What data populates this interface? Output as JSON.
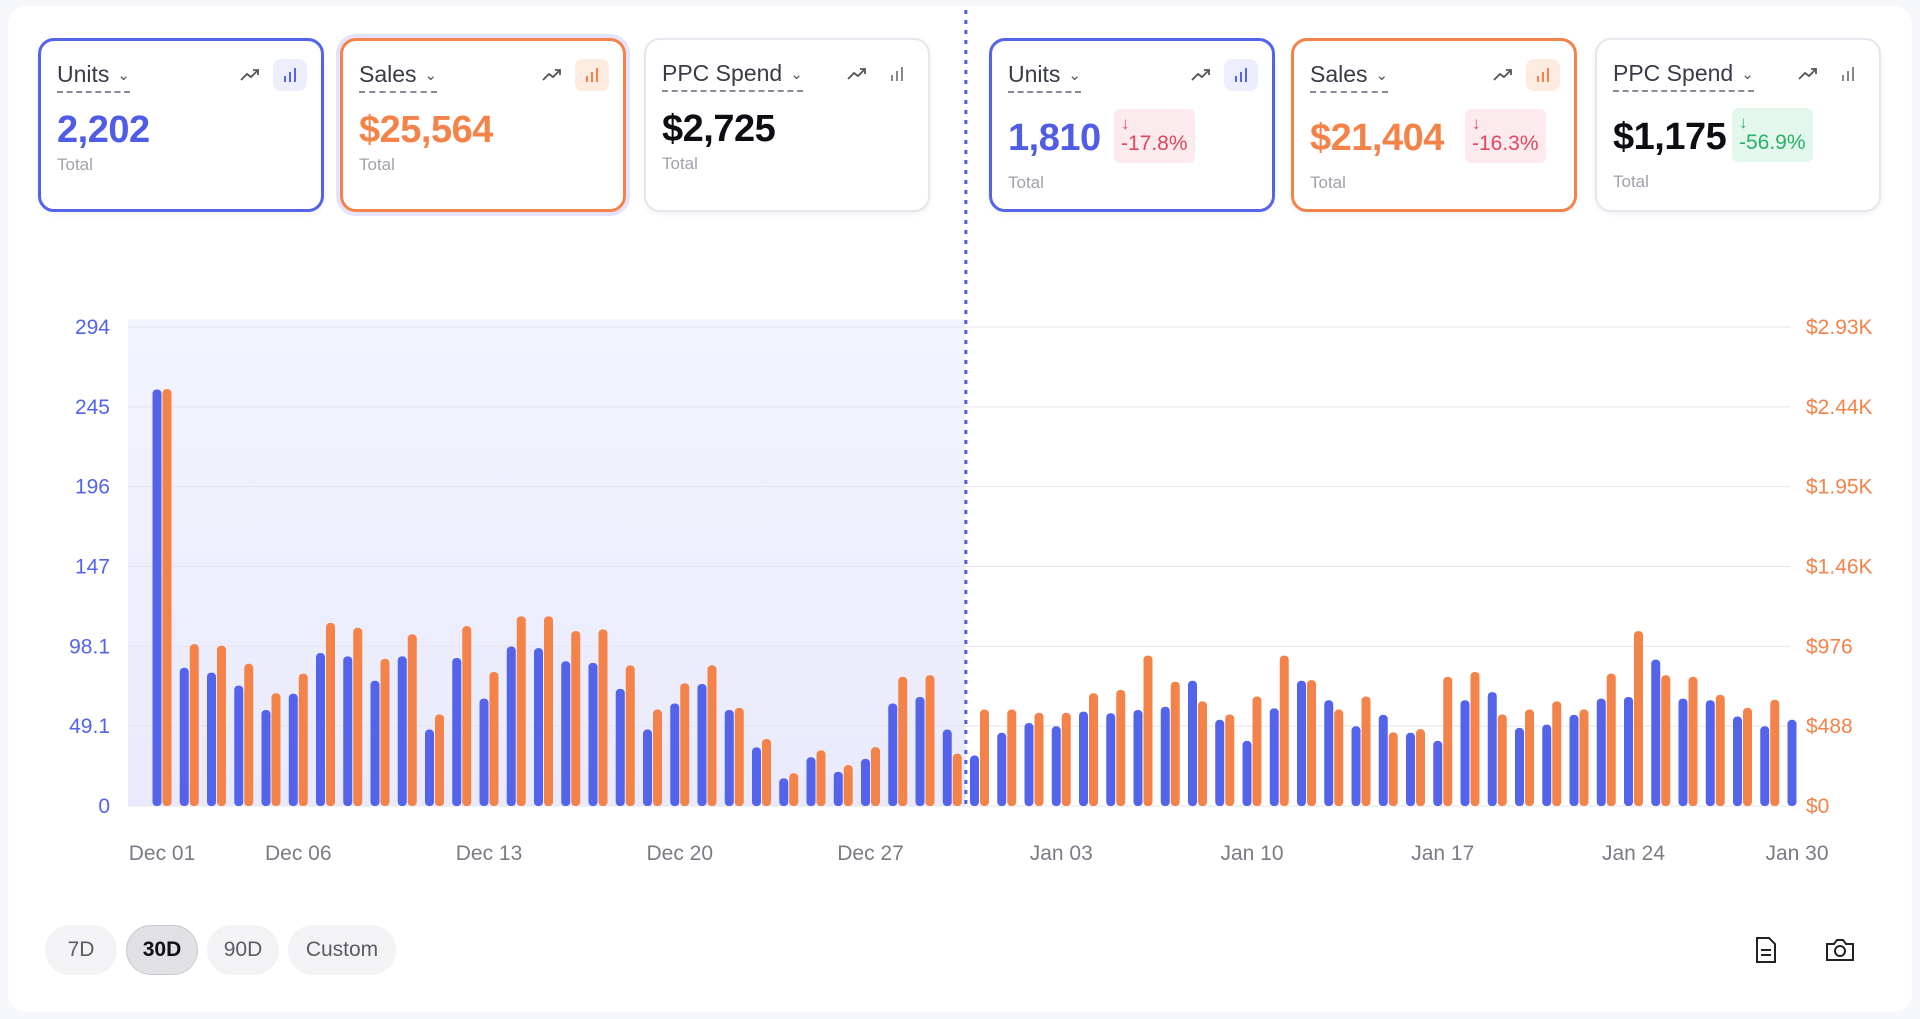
{
  "cards_before": [
    {
      "title": "Units",
      "value": "2,202",
      "sub": "Total"
    },
    {
      "title": "Sales",
      "value": "$25,564",
      "sub": "Total"
    },
    {
      "title": "PPC Spend",
      "value": "$2,725",
      "sub": "Total"
    }
  ],
  "cards_after": [
    {
      "title": "Units",
      "value": "1,810",
      "sub": "Total",
      "delta": "-17.8%",
      "trend": "down"
    },
    {
      "title": "Sales",
      "value": "$21,404",
      "sub": "Total",
      "delta": "-16.3%",
      "trend": "down"
    },
    {
      "title": "PPC Spend",
      "value": "$1,175",
      "sub": "Total",
      "delta": "-56.9%",
      "trend": "down-good"
    }
  ],
  "colors": {
    "units": "#5464ea",
    "sales": "#f4834a",
    "negative": "#e0475f",
    "positive": "#27b267"
  },
  "range_buttons": [
    "7D",
    "30D",
    "90D",
    "Custom"
  ],
  "active_range": "30D",
  "tools": [
    {
      "icon": "document-icon"
    },
    {
      "icon": "camera-icon"
    }
  ],
  "chart_data": {
    "type": "bar",
    "left_axis": {
      "ticks": [
        "294",
        "245",
        "196",
        "147",
        "98.1",
        "49.1",
        "0"
      ],
      "ylim": [
        0,
        294.4
      ]
    },
    "right_axis": {
      "ticks": [
        "$2.93K",
        "$2.44K",
        "$1.95K",
        "$1.46K",
        "$976",
        "$488",
        "$0"
      ],
      "ylim": [
        0,
        2930
      ]
    },
    "x_tick_labels": [
      {
        "label": "Dec 01",
        "index": 0
      },
      {
        "label": "Dec 06",
        "index": 5
      },
      {
        "label": "Dec 13",
        "index": 12
      },
      {
        "label": "Dec 20",
        "index": 19
      },
      {
        "label": "Dec 27",
        "index": 26
      },
      {
        "label": "Jan 03",
        "index": 33
      },
      {
        "label": "Jan 10",
        "index": 40
      },
      {
        "label": "Jan 17",
        "index": 47
      },
      {
        "label": "Jan 24",
        "index": 54
      },
      {
        "label": "Jan 30",
        "index": 60
      }
    ],
    "comparison_split_index": 30,
    "grid": true,
    "series": [
      {
        "name": "Units",
        "axis": "left",
        "values": [
          256,
          85,
          82,
          74,
          59,
          69,
          94,
          92,
          77,
          92,
          47,
          91,
          66,
          98,
          97,
          89,
          88,
          72,
          47,
          63,
          75,
          59,
          36,
          17,
          30,
          21,
          29,
          63,
          67,
          47,
          31,
          45,
          51,
          49,
          58,
          57,
          59,
          61,
          77,
          53,
          40,
          60,
          77,
          65,
          49,
          56,
          45,
          40,
          65,
          70,
          48,
          50,
          56,
          66,
          67,
          90,
          66,
          65,
          55,
          49,
          53
        ],
        "values_note": "daily units, Dec 01 – Jan 30"
      },
      {
        "name": "Sales",
        "axis": "right",
        "values": [
          2550,
          990,
          980,
          870,
          690,
          810,
          1120,
          1090,
          900,
          1050,
          560,
          1100,
          820,
          1160,
          1160,
          1070,
          1080,
          860,
          590,
          750,
          860,
          600,
          410,
          200,
          340,
          250,
          360,
          790,
          800,
          320,
          590,
          590,
          570,
          570,
          690,
          710,
          920,
          760,
          640,
          560,
          670,
          920,
          770,
          590,
          670,
          450,
          470,
          790,
          820,
          560,
          590,
          640,
          590,
          810,
          1070,
          800,
          790,
          680,
          600,
          650,
          0
        ],
        "values_note": "daily sales in $, Dec 01 – Jan 30"
      }
    ]
  }
}
